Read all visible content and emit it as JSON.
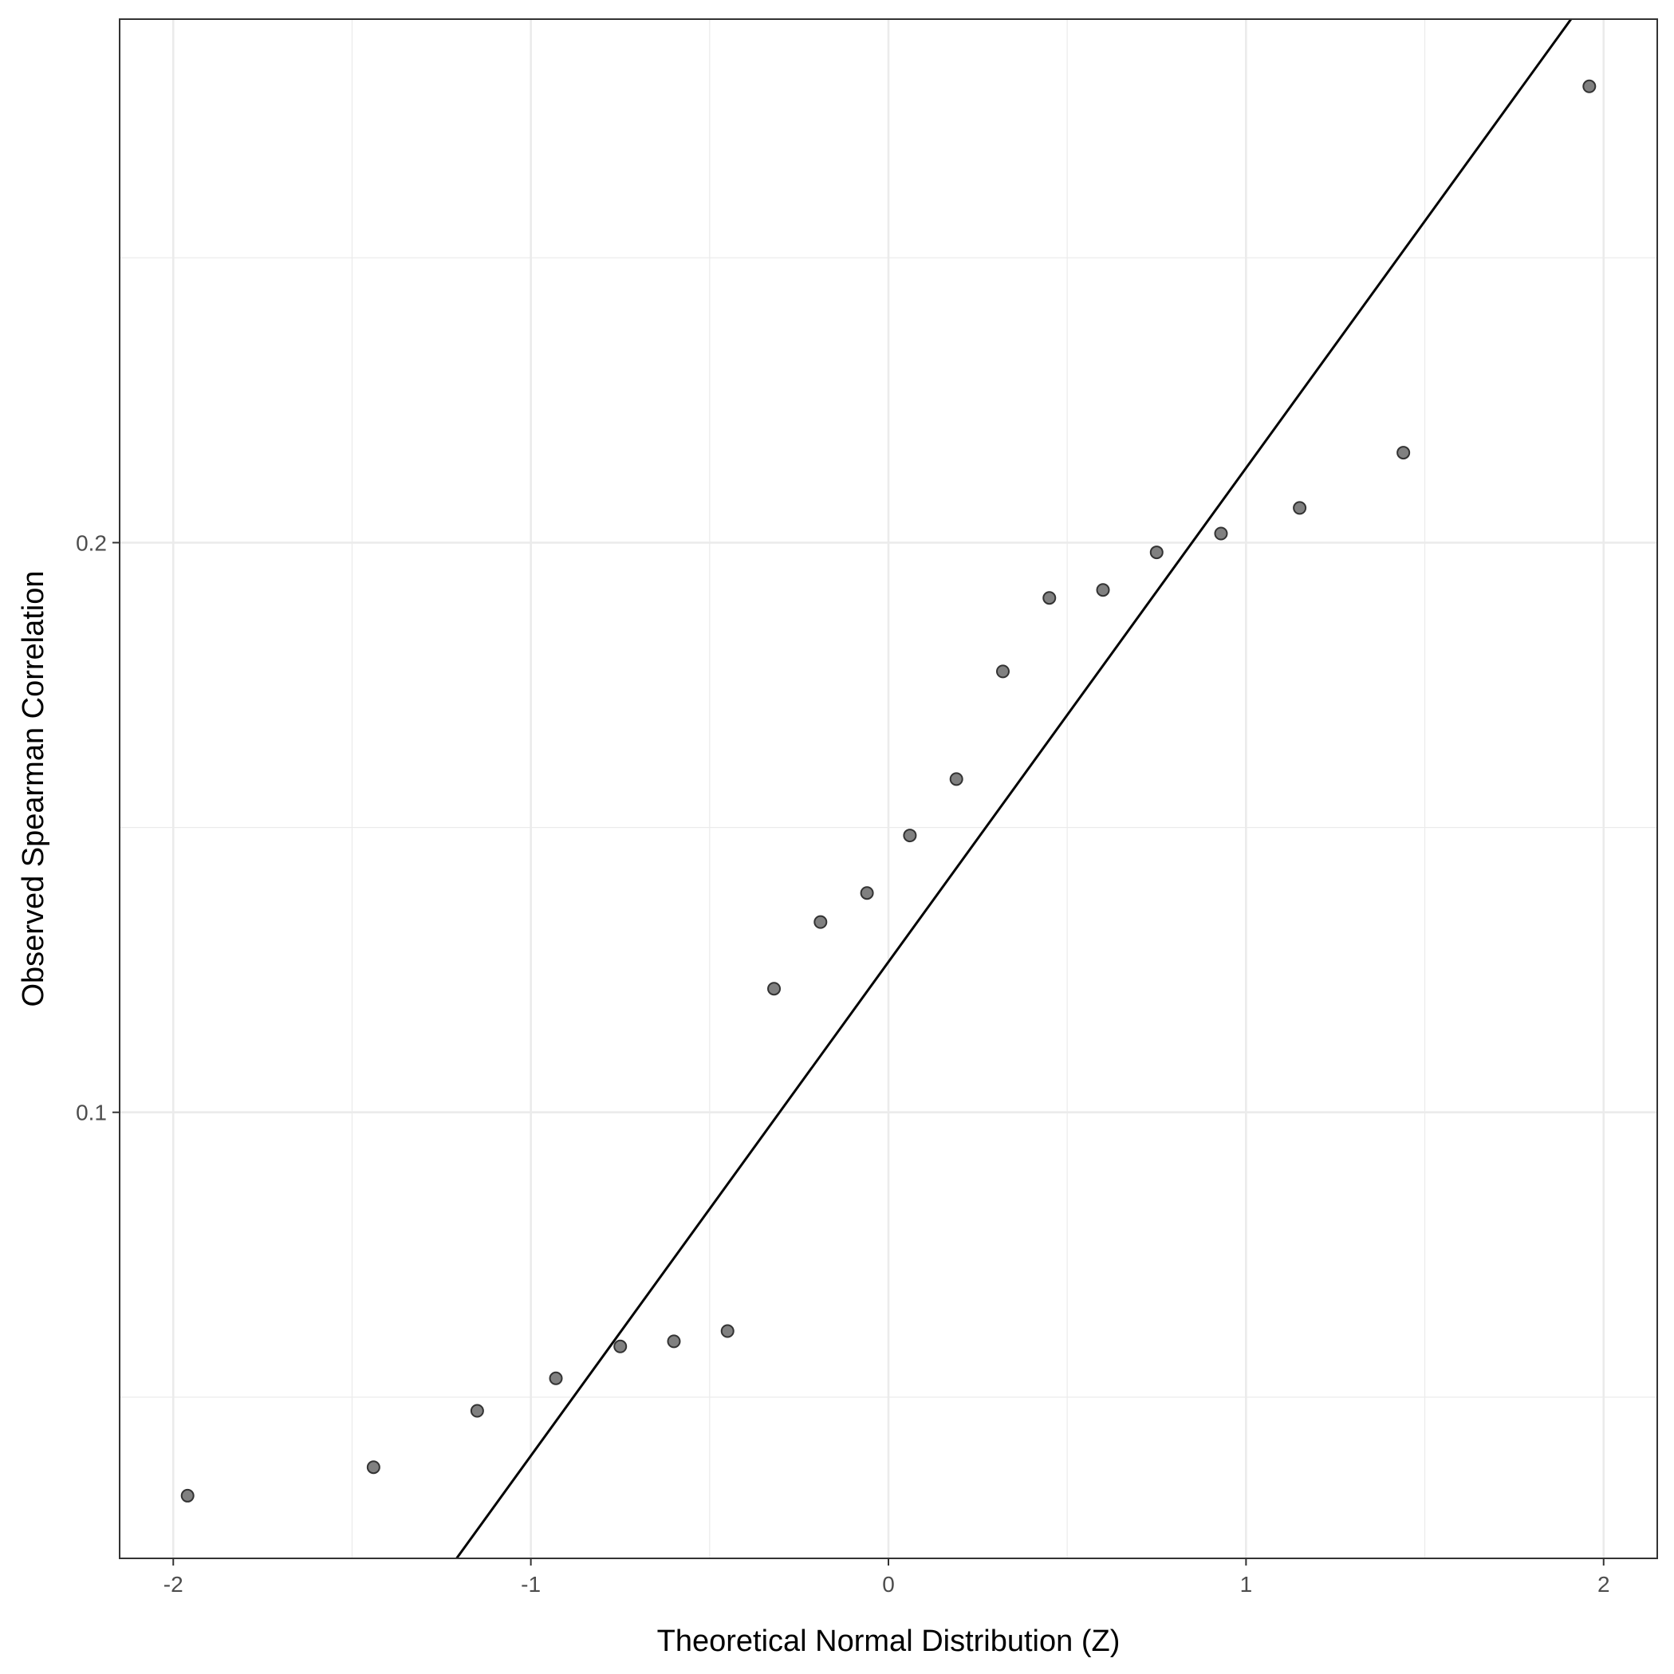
{
  "chart_data": {
    "type": "scatter",
    "title": "",
    "xlabel": "Theoretical Normal Distribution (Z)",
    "ylabel": "Observed Spearman Correlation",
    "xlim": [
      -2.15,
      2.15
    ],
    "ylim": [
      0.0217,
      0.2919
    ],
    "x_ticks": [
      -2,
      -1,
      0,
      1,
      2
    ],
    "x_tick_labels": [
      "-2",
      "-1",
      "0",
      "1",
      "2"
    ],
    "y_ticks": [
      0.1,
      0.2
    ],
    "y_tick_labels": [
      "0.1",
      "0.2"
    ],
    "x_minor_grid": [
      -1.5,
      -0.5,
      0.5,
      1.5
    ],
    "y_minor_grid": [
      0.05,
      0.15,
      0.25
    ],
    "grid": true,
    "series": [
      {
        "x": [
          -1.96,
          -1.44,
          -1.15,
          -0.93,
          -0.75,
          -0.6,
          -0.45,
          -0.32,
          -0.19,
          -0.06,
          0.06,
          0.19,
          0.32,
          0.45,
          0.6,
          0.75,
          0.93,
          1.15,
          1.44,
          1.96
        ],
        "y": [
          0.0327,
          0.0377,
          0.0476,
          0.0533,
          0.0589,
          0.0598,
          0.0616,
          0.1217,
          0.1334,
          0.1385,
          0.1486,
          0.1585,
          0.1774,
          0.1903,
          0.1917,
          0.1983,
          0.2016,
          0.2061,
          0.2158,
          0.2801
        ]
      }
    ],
    "reference_line": {
      "intercept": 0.1264,
      "slope": 0.0867
    }
  }
}
